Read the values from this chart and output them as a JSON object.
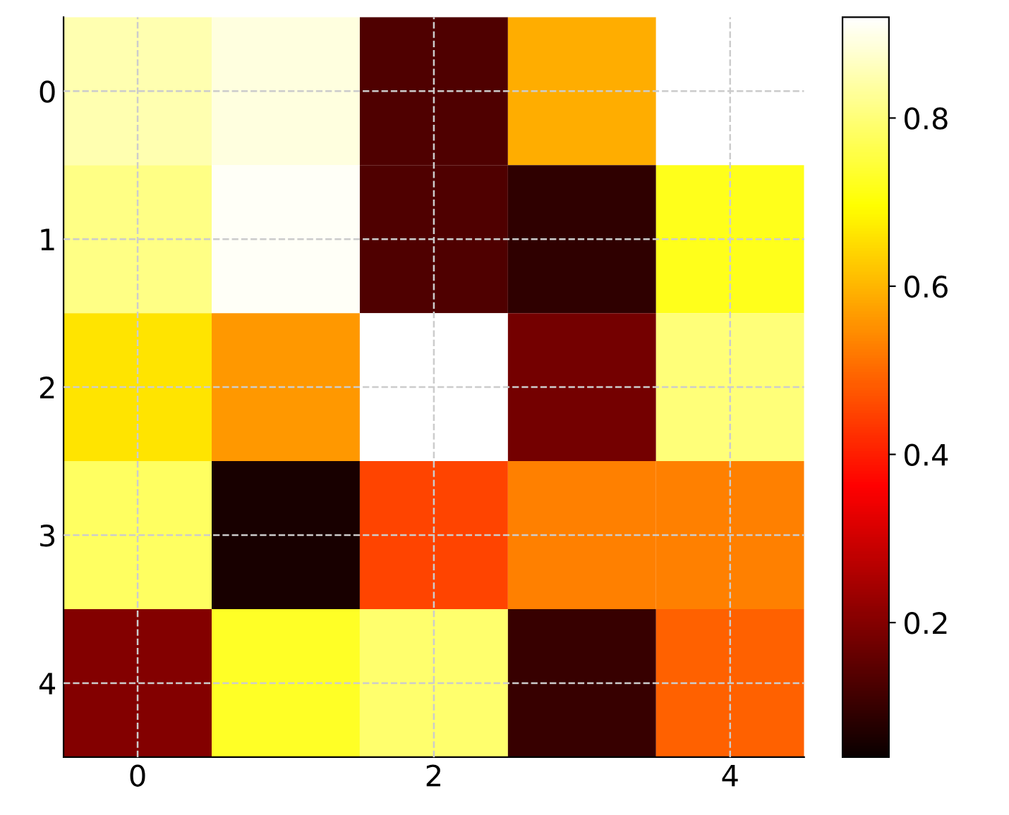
{
  "chart_data": {
    "type": "heatmap",
    "categories": [
      "0",
      null,
      "2",
      null,
      "4"
    ],
    "y_categories": [
      "0",
      "1",
      "2",
      "3",
      "4"
    ],
    "cells": [
      [
        0.85,
        0.89,
        0.13,
        0.59,
        0.92
      ],
      [
        0.81,
        0.91,
        0.13,
        0.09,
        0.72
      ],
      [
        0.66,
        0.56,
        0.92,
        0.18,
        0.8
      ],
      [
        0.78,
        0.06,
        0.45,
        0.53,
        0.53
      ],
      [
        0.2,
        0.73,
        0.79,
        0.1,
        0.49
      ]
    ],
    "clim": [
      0.04,
      0.92
    ],
    "cticks": [
      0.2,
      0.4,
      0.6,
      0.8
    ],
    "grid": true
  }
}
